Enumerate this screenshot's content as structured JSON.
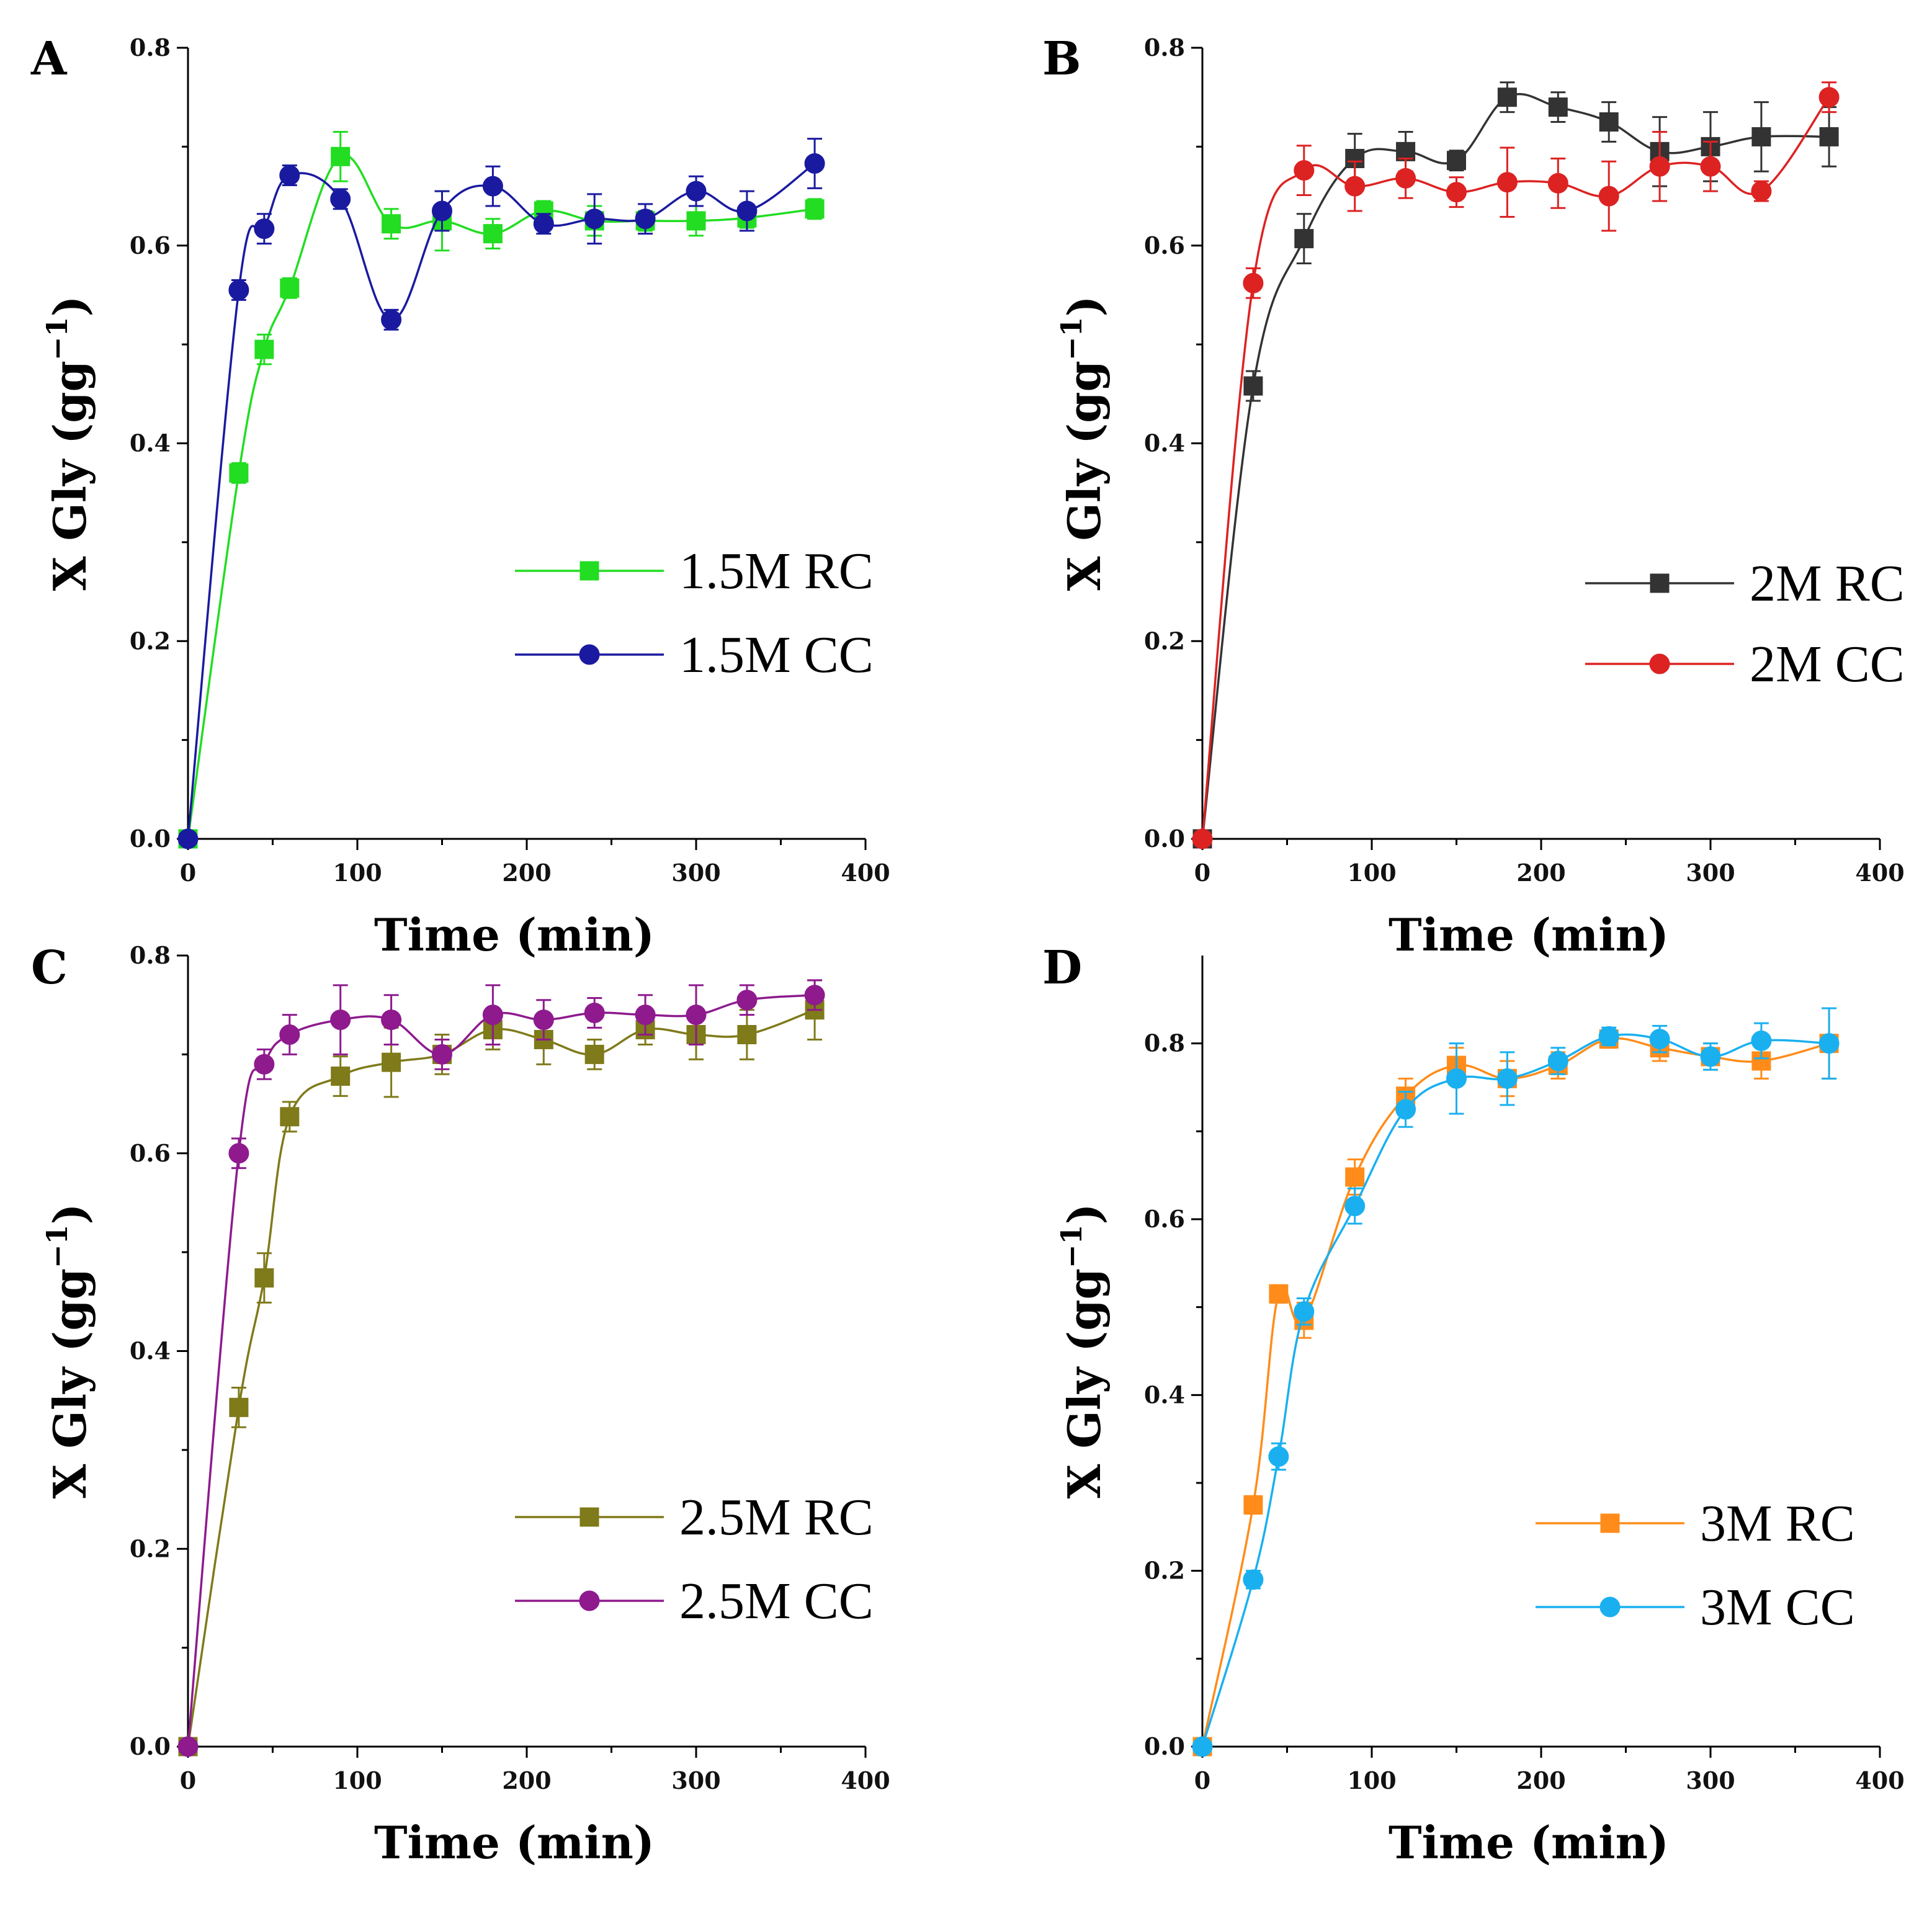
{
  "chart_data": [
    {
      "type": "line",
      "panel": "A",
      "xlabel": "Time (min)",
      "ylabel_main": "X Gly (gg",
      "ylabel_sup": "−1",
      "ylabel_close": ")",
      "xlim": [
        0,
        400
      ],
      "ylim": [
        0,
        0.8
      ],
      "xticks": [
        0,
        100,
        200,
        300,
        400
      ],
      "yticks": [
        0.0,
        0.2,
        0.4,
        0.6,
        0.8
      ],
      "xtick_labels": [
        "0",
        "100",
        "200",
        "300",
        "400"
      ],
      "ytick_labels": [
        "0.0",
        "0.2",
        "0.4",
        "0.6",
        "0.8"
      ],
      "legend_position": "middle-right",
      "series": [
        {
          "name": "1.5M RC",
          "color": "#22dd22",
          "marker": "square",
          "x": [
            0,
            30,
            45,
            60,
            90,
            120,
            150,
            180,
            210,
            240,
            270,
            300,
            330,
            370
          ],
          "y": [
            0.0,
            0.37,
            0.495,
            0.557,
            0.69,
            0.622,
            0.625,
            0.612,
            0.635,
            0.625,
            0.625,
            0.625,
            0.628,
            0.637
          ],
          "err": [
            0,
            0.01,
            0.015,
            0.01,
            0.025,
            0.015,
            0.03,
            0.015,
            0.01,
            0.015,
            0.01,
            0.015,
            0.01,
            0.01
          ]
        },
        {
          "name": "1.5M CC",
          "color": "#1a1aa0",
          "marker": "circle",
          "x": [
            0,
            30,
            45,
            60,
            90,
            120,
            150,
            180,
            210,
            240,
            270,
            300,
            330,
            370
          ],
          "y": [
            0.0,
            0.555,
            0.617,
            0.671,
            0.647,
            0.525,
            0.635,
            0.66,
            0.622,
            0.627,
            0.627,
            0.655,
            0.635,
            0.683
          ],
          "err": [
            0,
            0.01,
            0.015,
            0.01,
            0.01,
            0.01,
            0.02,
            0.02,
            0.01,
            0.025,
            0.015,
            0.015,
            0.02,
            0.025
          ]
        }
      ]
    },
    {
      "type": "line",
      "panel": "B",
      "xlabel": "Time (min)",
      "ylabel_main": "X Gly (gg",
      "ylabel_sup": "−1",
      "ylabel_close": ")",
      "xlim": [
        0,
        400
      ],
      "ylim": [
        0,
        0.8
      ],
      "xticks": [
        0,
        100,
        200,
        300,
        400
      ],
      "yticks": [
        0.0,
        0.2,
        0.4,
        0.6,
        0.8
      ],
      "xtick_labels": [
        "0",
        "100",
        "200",
        "300",
        "400"
      ],
      "ytick_labels": [
        "0.0",
        "0.2",
        "0.4",
        "0.6",
        "0.8"
      ],
      "legend_position": "middle-right",
      "series": [
        {
          "name": "2M RC",
          "color": "#333333",
          "marker": "square",
          "x": [
            0,
            30,
            60,
            90,
            120,
            150,
            180,
            210,
            240,
            270,
            300,
            330,
            370
          ],
          "y": [
            0.0,
            0.458,
            0.607,
            0.688,
            0.695,
            0.686,
            0.75,
            0.74,
            0.725,
            0.695,
            0.7,
            0.71,
            0.71
          ],
          "err": [
            0,
            0.015,
            0.025,
            0.025,
            0.02,
            0.01,
            0.015,
            0.015,
            0.02,
            0.035,
            0.035,
            0.035,
            0.03
          ]
        },
        {
          "name": "2M CC",
          "color": "#dd2222",
          "marker": "circle",
          "x": [
            0,
            30,
            60,
            90,
            120,
            150,
            180,
            210,
            240,
            270,
            300,
            330,
            370
          ],
          "y": [
            0.0,
            0.562,
            0.676,
            0.66,
            0.668,
            0.654,
            0.664,
            0.663,
            0.65,
            0.68,
            0.68,
            0.655,
            0.75
          ],
          "err": [
            0,
            0.015,
            0.025,
            0.025,
            0.02,
            0.015,
            0.035,
            0.025,
            0.035,
            0.035,
            0.025,
            0.01,
            0.015
          ]
        }
      ]
    },
    {
      "type": "line",
      "panel": "C",
      "xlabel": "Time (min)",
      "ylabel_main": "X Gly (gg",
      "ylabel_sup": "−1",
      "ylabel_close": ")",
      "xlim": [
        0,
        400
      ],
      "ylim": [
        0,
        0.8
      ],
      "xticks": [
        0,
        100,
        200,
        300,
        400
      ],
      "yticks": [
        0.0,
        0.2,
        0.4,
        0.6,
        0.8
      ],
      "xtick_labels": [
        "0",
        "100",
        "200",
        "300",
        "400"
      ],
      "ytick_labels": [
        "0.0",
        "0.2",
        "0.4",
        "0.6",
        "0.8"
      ],
      "legend_position": "lower-right",
      "series": [
        {
          "name": "2.5M RC",
          "color": "#7f7a1a",
          "marker": "square",
          "x": [
            0,
            30,
            45,
            60,
            90,
            120,
            150,
            180,
            210,
            240,
            270,
            300,
            330,
            370
          ],
          "y": [
            0.0,
            0.343,
            0.474,
            0.637,
            0.678,
            0.692,
            0.7,
            0.725,
            0.715,
            0.7,
            0.725,
            0.72,
            0.72,
            0.745
          ],
          "err": [
            0,
            0.02,
            0.025,
            0.015,
            0.02,
            0.035,
            0.02,
            0.02,
            0.025,
            0.015,
            0.015,
            0.025,
            0.025,
            0.03
          ]
        },
        {
          "name": "2.5M CC",
          "color": "#8e1a8e",
          "marker": "circle",
          "x": [
            0,
            30,
            45,
            60,
            90,
            120,
            150,
            180,
            210,
            240,
            270,
            300,
            330,
            370
          ],
          "y": [
            0.0,
            0.6,
            0.69,
            0.72,
            0.735,
            0.735,
            0.7,
            0.74,
            0.735,
            0.742,
            0.74,
            0.74,
            0.755,
            0.76
          ],
          "err": [
            0,
            0.015,
            0.015,
            0.02,
            0.035,
            0.025,
            0.015,
            0.03,
            0.02,
            0.015,
            0.02,
            0.03,
            0.015,
            0.015
          ]
        }
      ]
    },
    {
      "type": "line",
      "panel": "D",
      "xlabel": "Time (min)",
      "ylabel_main": "X Gly (gg",
      "ylabel_sup": "−1",
      "ylabel_close": ")",
      "xlim": [
        0,
        400
      ],
      "ylim": [
        0,
        0.9
      ],
      "xticks": [
        0,
        100,
        200,
        300,
        400
      ],
      "yticks": [
        0.0,
        0.2,
        0.4,
        0.6,
        0.8
      ],
      "xtick_labels": [
        "0",
        "100",
        "200",
        "300",
        "400"
      ],
      "ytick_labels": [
        "0.0",
        "0.2",
        "0.4",
        "0.6",
        "0.8"
      ],
      "legend_position": "lower-right",
      "series": [
        {
          "name": "3M RC",
          "color": "#ff8c1a",
          "marker": "square",
          "x": [
            0,
            30,
            45,
            60,
            90,
            120,
            150,
            180,
            210,
            240,
            270,
            300,
            330,
            370
          ],
          "y": [
            0.0,
            0.275,
            0.515,
            0.485,
            0.648,
            0.74,
            0.775,
            0.76,
            0.775,
            0.805,
            0.795,
            0.785,
            0.78,
            0.8
          ],
          "err": [
            0,
            0.01,
            0.01,
            0.02,
            0.02,
            0.02,
            0.02,
            0.02,
            0.015,
            0.01,
            0.015,
            0.015,
            0.02,
            0.04
          ]
        },
        {
          "name": "3M CC",
          "color": "#1ab0f0",
          "marker": "circle",
          "x": [
            0,
            30,
            45,
            60,
            90,
            120,
            150,
            180,
            210,
            240,
            270,
            300,
            330,
            370
          ],
          "y": [
            0.0,
            0.19,
            0.33,
            0.495,
            0.615,
            0.725,
            0.76,
            0.76,
            0.78,
            0.808,
            0.805,
            0.785,
            0.803,
            0.8
          ],
          "err": [
            0,
            0.01,
            0.015,
            0.015,
            0.02,
            0.02,
            0.04,
            0.03,
            0.015,
            0.01,
            0.015,
            0.015,
            0.02,
            0.04
          ]
        }
      ]
    }
  ]
}
